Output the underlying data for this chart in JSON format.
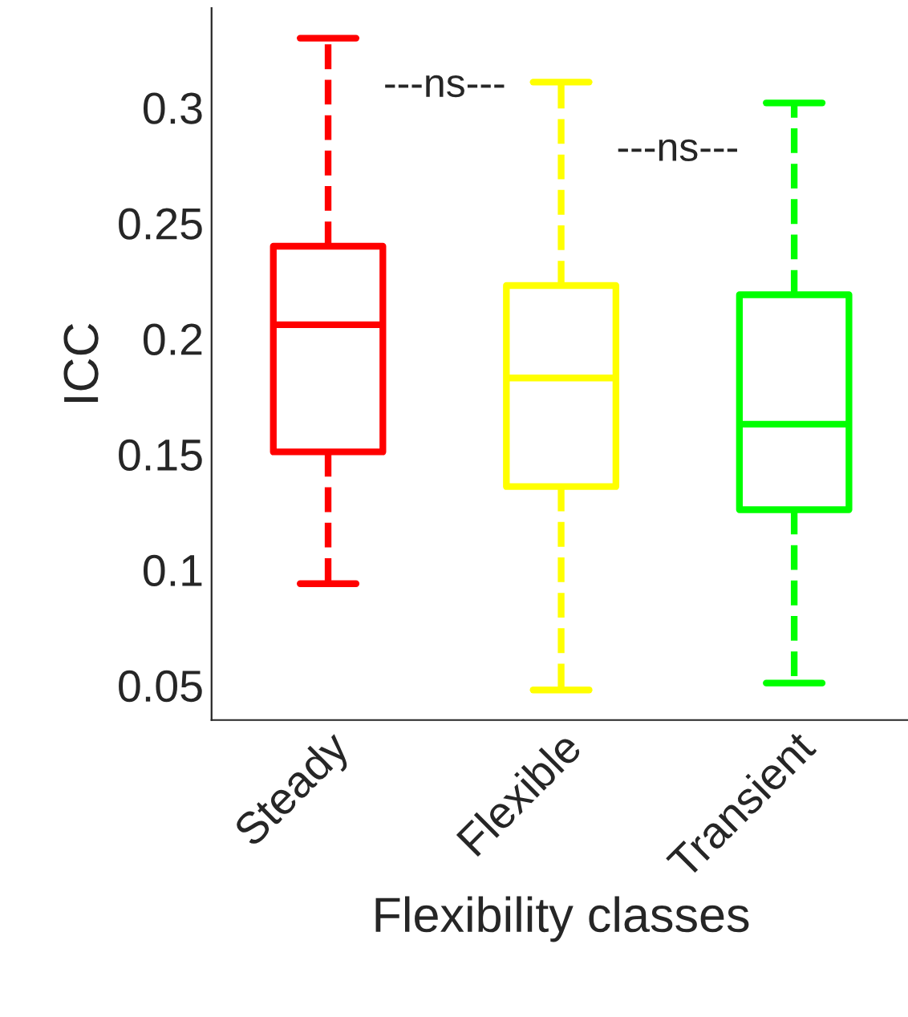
{
  "chart_data": {
    "type": "box",
    "xlabel": "Flexibility classes",
    "ylabel": "ICC",
    "categories": [
      "Steady",
      "Flexible",
      "Transient"
    ],
    "colors": [
      "#ff0000",
      "#ffff00",
      "#00ff00"
    ],
    "boxes": [
      {
        "low": 0.094,
        "q1": 0.151,
        "median": 0.206,
        "q3": 0.24,
        "high": 0.33
      },
      {
        "low": 0.048,
        "q1": 0.136,
        "median": 0.183,
        "q3": 0.223,
        "high": 0.311
      },
      {
        "low": 0.051,
        "q1": 0.126,
        "median": 0.163,
        "q3": 0.219,
        "high": 0.302
      }
    ],
    "ylim": [
      0.035,
      0.343
    ],
    "yticks": [
      0.05,
      0.1,
      0.15,
      0.2,
      0.25,
      0.3
    ],
    "annotations": [
      "---ns---",
      "---ns---"
    ],
    "grid": false,
    "line_style": "dashed"
  }
}
